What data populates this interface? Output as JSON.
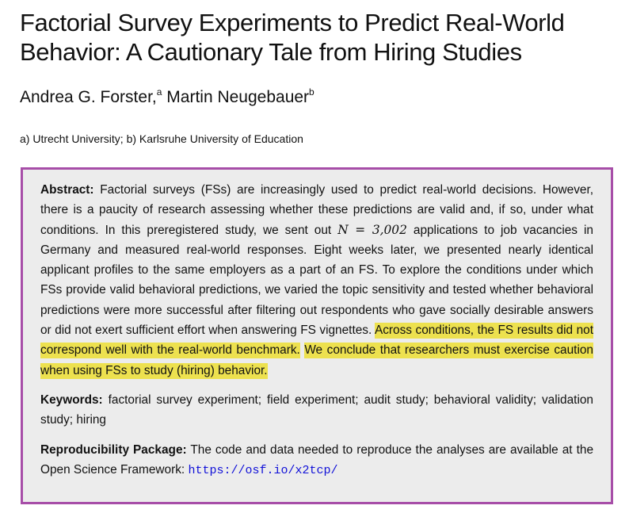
{
  "paper": {
    "title": "Factorial Survey Experiments to Predict Real-World Behavior: A Cautionary Tale from Hiring Studies",
    "authors": [
      {
        "name": "Andrea G. Forster,",
        "marker": "a"
      },
      {
        "name": " Martin Neugebauer",
        "marker": "b"
      }
    ],
    "affiliations": "a) Utrecht University; b) Karlsruhe University of Education"
  },
  "abstract": {
    "label": "Abstract:",
    "part1": " Factorial surveys (FSs) are increasingly used to predict real-world decisions.  However, there is a paucity of research assessing whether these predictions are valid and, if so, under what conditions.  In this preregistered study, we sent out ",
    "math_n": "N",
    "math_eq": " = ",
    "math_value": "3,002",
    "part2": " applications to job vacancies in Germany and measured real-world responses. Eight weeks later, we presented nearly identical applicant profiles to the same employers as a part of an FS. To explore the conditions under which FSs provide valid behavioral predictions, we varied the topic sensitivity and tested whether behavioral predictions were more successful after filtering out respondents who gave socially desirable answers or did not exert sufficient effort when answering FS vignettes. ",
    "highlight1": "Across conditions, the FS results did not correspond well with the real-world benchmark.",
    "space": " ",
    "highlight2": "We conclude that researchers must exercise caution when using FSs to study (hiring) behavior."
  },
  "keywords": {
    "label": "Keywords:",
    "text": " factorial survey experiment; field experiment; audit study; behavioral validity; validation study; hiring"
  },
  "reproducibility": {
    "label": "Reproducibility Package:",
    "text": " The code and data needed to reproduce the analyses are available at the Open Science Framework: ",
    "url": "https://osf.io/x2tcp/"
  },
  "colors": {
    "box_border": "#a74ea8",
    "box_background": "#ececec",
    "highlight": "#ede14f",
    "link": "#1010d8"
  }
}
